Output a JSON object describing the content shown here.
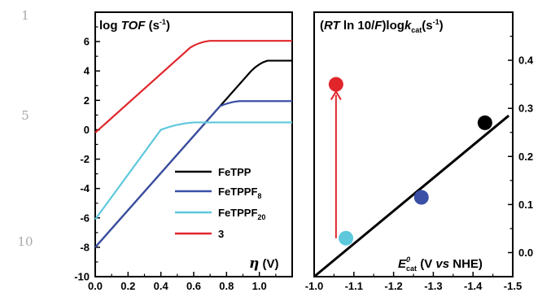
{
  "line_numbers": [
    "1",
    "5",
    "10"
  ],
  "chart_data": [
    {
      "type": "line",
      "title": "log TOF (s-1)",
      "title_parts": {
        "lead": "log ",
        "italic": "TOF",
        "tail": " (s",
        "sup": "-1",
        "close": ")"
      },
      "xlabel": "η (V)",
      "xlabel_parts": {
        "symbol": "η",
        "unit": " (V)"
      },
      "xlim": [
        0.0,
        1.2
      ],
      "ylim": [
        -10,
        8
      ],
      "xticks": [
        "0.0",
        "0.2",
        "0.4",
        "0.6",
        "0.8",
        "1.0"
      ],
      "yticks": [
        "-10",
        "-8",
        "-6",
        "-4",
        "-2",
        "0",
        "2",
        "4",
        "6"
      ],
      "grid": false,
      "legend_position": "center-right",
      "series": [
        {
          "name": "FeTPP",
          "color": "#000000",
          "x": [
            0.0,
            0.95,
            1.0,
            1.05,
            1.2
          ],
          "y": [
            -8.0,
            4.0,
            4.55,
            4.7,
            4.7
          ]
        },
        {
          "name": "FeTPPF8",
          "name_parts": {
            "base": "FeTPPF",
            "sub": "8"
          },
          "color": "#3a4fa5",
          "x": [
            0.0,
            0.76,
            0.82,
            0.88,
            1.2
          ],
          "y": [
            -8.0,
            1.6,
            1.9,
            1.95,
            1.95
          ]
        },
        {
          "name": "FeTPPF20",
          "name_parts": {
            "base": "FeTPPF",
            "sub": "20"
          },
          "color": "#5ec8dc",
          "x": [
            0.0,
            0.4,
            0.5,
            0.6,
            1.2
          ],
          "y": [
            -6.1,
            0.0,
            0.42,
            0.5,
            0.5
          ]
        },
        {
          "name": "3",
          "color": "#e0262b",
          "x": [
            0.0,
            0.58,
            0.64,
            0.7,
            1.2
          ],
          "y": [
            -0.2,
            5.6,
            6.0,
            6.05,
            6.05
          ]
        }
      ]
    },
    {
      "type": "scatter",
      "title": "(RT ln 10/F)logkcat(s-1)",
      "title_parts": {
        "open": "(",
        "rt": "RT",
        "mid": " ln 10/",
        "f": "F",
        "close": ")log",
        "k": "k",
        "sub": "cat",
        "open2": "(s",
        "sup": "-1",
        "close2": ")"
      },
      "xlabel": "E0cat (V vs NHE)",
      "xlabel_parts": {
        "e": "E",
        "sup": "0",
        "sub": "cat",
        "open": " (V ",
        "vs": "vs",
        "tail": " NHE)"
      },
      "xlim": [
        -1.0,
        -1.5
      ],
      "ylim": [
        -0.05,
        0.5
      ],
      "xticks": [
        "-1.0",
        "-1.1",
        "-1.2",
        "-1.3",
        "-1.4",
        "-1.5"
      ],
      "yticks": [
        "0.0",
        "0.1",
        "0.2",
        "0.3",
        "0.4"
      ],
      "grid": false,
      "points": [
        {
          "name": "3",
          "x": -1.055,
          "y": 0.35,
          "color": "#e0262b"
        },
        {
          "name": "FeTPPF20",
          "x": -1.08,
          "y": 0.03,
          "color": "#5ec8dc"
        },
        {
          "name": "FeTPPF8",
          "x": -1.27,
          "y": 0.115,
          "color": "#3a4fa5"
        },
        {
          "name": "FeTPP",
          "x": -1.43,
          "y": 0.27,
          "color": "#000000"
        }
      ],
      "fit_line": {
        "x": [
          -1.0,
          -1.49
        ],
        "y": [
          -0.05,
          0.285
        ],
        "color": "#000000"
      },
      "arrow": {
        "x": [
          -1.055,
          -1.055
        ],
        "y": [
          0.03,
          0.335
        ],
        "color": "#e0262b"
      }
    }
  ]
}
